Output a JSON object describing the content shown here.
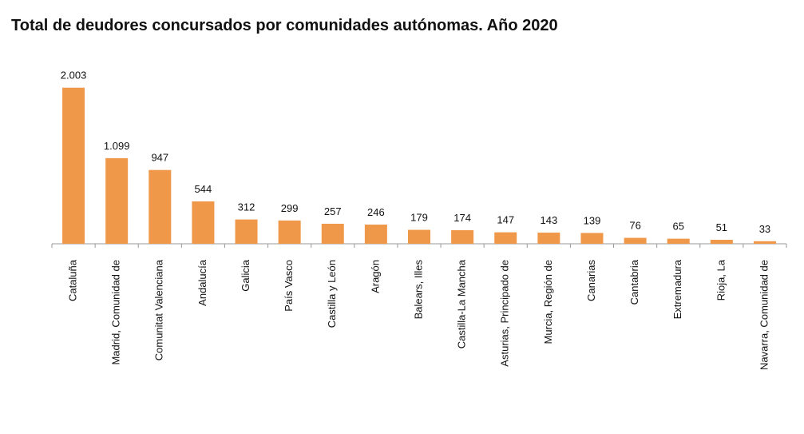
{
  "chart_data": {
    "type": "bar",
    "title": "Total de deudores concursados por comunidades autónomas. Año 2020",
    "categories": [
      "Cataluña",
      "Madrid, Comunidad de",
      "Comunitat Valenciana",
      "Andalucía",
      "Galicia",
      "País Vasco",
      "Castilla y León",
      "Aragón",
      "Balears, Illes",
      "Castilla-La Mancha",
      "Asturias, Principado de",
      "Murcia, Región de",
      "Canarias",
      "Cantabria",
      "Extremadura",
      "Rioja, La",
      "Navarra, Comunidad de"
    ],
    "values": [
      2003,
      1099,
      947,
      544,
      312,
      299,
      257,
      246,
      179,
      174,
      147,
      143,
      139,
      76,
      65,
      51,
      33
    ],
    "value_labels": [
      "2.003",
      "1.099",
      "947",
      "544",
      "312",
      "299",
      "257",
      "246",
      "179",
      "174",
      "147",
      "143",
      "139",
      "76",
      "65",
      "51",
      "33"
    ],
    "color": "#f0984a",
    "ylim": [
      0,
      2000
    ]
  }
}
